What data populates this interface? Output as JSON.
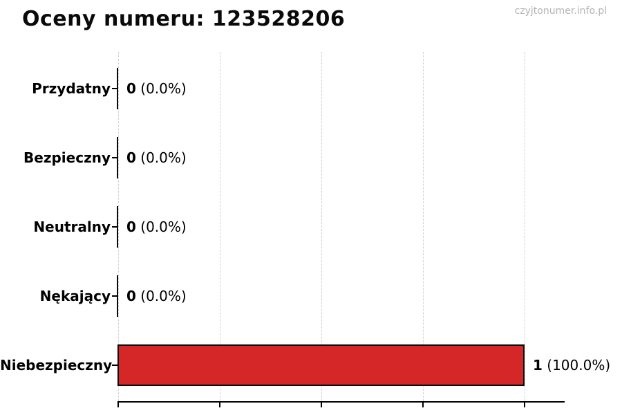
{
  "header": {
    "title": "Oceny numeru: 123528206",
    "watermark": "czyjtonumer.info.pl"
  },
  "colors": {
    "bar_fill": "#d62728",
    "bar_edge": "#0a0a0a",
    "grid": "#d0d0d0",
    "axis": "#000000",
    "watermark": "#b4b4b4"
  },
  "chart_data": {
    "type": "bar",
    "orientation": "horizontal",
    "title": "Oceny numeru: 123528206",
    "categories": [
      "Przydatny",
      "Bezpieczny",
      "Neutralny",
      "Nękający",
      "Niebezpieczny"
    ],
    "values": [
      0,
      0,
      0,
      0,
      1
    ],
    "value_labels": [
      {
        "count": "0",
        "pct": "(0.0%)"
      },
      {
        "count": "0",
        "pct": "(0.0%)"
      },
      {
        "count": "0",
        "pct": "(0.0%)"
      },
      {
        "count": "0",
        "pct": "(0.0%)"
      },
      {
        "count": "1",
        "pct": "(100.0%)"
      }
    ],
    "xlabel": "",
    "ylabel": "",
    "xlim": [
      0,
      1.1
    ],
    "x_ticks": [
      0,
      0.25,
      0.5,
      0.75,
      1.0
    ],
    "x_tick_labels_visible": false,
    "grid": true,
    "legend": false
  }
}
